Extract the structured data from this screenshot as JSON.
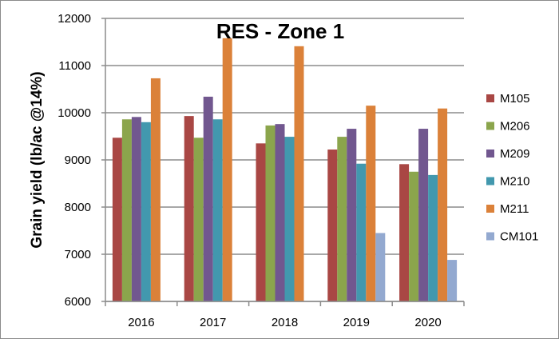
{
  "chart_data": {
    "type": "bar",
    "title": "RES - Zone 1",
    "xlabel": "",
    "ylabel": "Grain yield (lb/ac @14%)",
    "ylim": [
      6000,
      12000
    ],
    "yticks": [
      6000,
      7000,
      8000,
      9000,
      10000,
      11000,
      12000
    ],
    "grid": true,
    "legend_position": "right",
    "categories": [
      "2016",
      "2017",
      "2018",
      "2019",
      "2020"
    ],
    "series": [
      {
        "name": "M105",
        "color": "#a94744",
        "values": [
          9470,
          9930,
          9350,
          9220,
          8910
        ]
      },
      {
        "name": "M206",
        "color": "#8ba54c",
        "values": [
          9860,
          9470,
          9730,
          9490,
          8750
        ]
      },
      {
        "name": "M209",
        "color": "#71578f",
        "values": [
          9910,
          10340,
          9760,
          9660,
          9660
        ]
      },
      {
        "name": "M210",
        "color": "#4298ae",
        "values": [
          9800,
          9860,
          9490,
          8920,
          8680
        ]
      },
      {
        "name": "M211",
        "color": "#db8139",
        "values": [
          10730,
          11580,
          11410,
          10150,
          10090
        ]
      },
      {
        "name": "CM101",
        "color": "#93a9d0",
        "values": [
          null,
          null,
          null,
          7450,
          6880
        ]
      }
    ]
  }
}
